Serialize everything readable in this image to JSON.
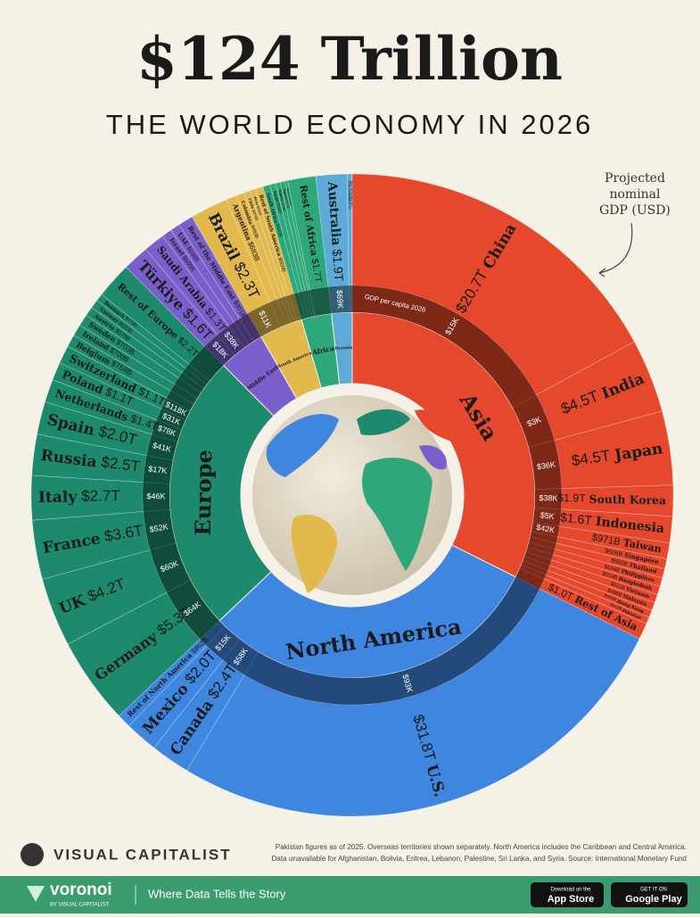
{
  "chart_data": {
    "type": "sunburst",
    "title": "$124 Trillion",
    "subtitle": "THE WORLD ECONOMY IN 2026",
    "annotation": [
      "Projected",
      "nominal",
      "GDP (USD)"
    ],
    "per_capita_title": "GDP per capita 2026",
    "regions": [
      {
        "name": "Asia",
        "color": "#e5482c",
        "countries": [
          {
            "name": "China",
            "value": 20.7,
            "value_label": "$20.7T",
            "per_capita": 15,
            "per_capita_label": "$15K"
          },
          {
            "name": "India",
            "value": 4.5,
            "value_label": "$4.5T",
            "per_capita": 3,
            "per_capita_label": "$3K"
          },
          {
            "name": "Japan",
            "value": 4.5,
            "value_label": "$4.5T",
            "per_capita": 36,
            "per_capita_label": "$36K"
          },
          {
            "name": "South Korea",
            "value": 1.9,
            "value_label": "$1.9T",
            "per_capita": 38,
            "per_capita_label": "$38K"
          },
          {
            "name": "Indonesia",
            "value": 1.6,
            "value_label": "$1.6T",
            "per_capita": 5,
            "per_capita_label": "$5K"
          },
          {
            "name": "Taiwan",
            "value": 0.971,
            "value_label": "$971B",
            "per_capita": 42,
            "per_capita_label": "$42K"
          },
          {
            "name": "Singapore",
            "value": 0.606,
            "value_label": "$606B",
            "per_capita": null,
            "per_capita_label": null
          },
          {
            "name": "Thailand",
            "value": 0.562,
            "value_label": "$562B",
            "per_capita": null,
            "per_capita_label": null
          },
          {
            "name": "Philippines",
            "value": 0.534,
            "value_label": "$534B",
            "per_capita": null,
            "per_capita_label": null
          },
          {
            "name": "Bangladesh",
            "value": 0.519,
            "value_label": "$519B",
            "per_capita": null,
            "per_capita_label": null
          },
          {
            "name": "Vietnam",
            "value": 0.511,
            "value_label": "$511B",
            "per_capita": null,
            "per_capita_label": null
          },
          {
            "name": "Malaysia",
            "value": 0.496,
            "value_label": "$496B",
            "per_capita": null,
            "per_capita_label": null
          },
          {
            "name": "Hong Kong",
            "value": 0.443,
            "value_label": "$443B",
            "per_capita": null,
            "per_capita_label": null
          },
          {
            "name": "Pakistan",
            "value": 0.41,
            "value_label": "$410B",
            "per_capita": null,
            "per_capita_label": null
          },
          {
            "name": "Rest of Asia",
            "value": 1.0,
            "value_label": "$1.0T",
            "per_capita": null,
            "per_capita_label": null
          }
        ]
      },
      {
        "name": "North America",
        "color": "#3f86e0",
        "countries": [
          {
            "name": "U.S.",
            "value": 31.8,
            "value_label": "$31.8T",
            "per_capita": 93,
            "per_capita_label": "$93K"
          },
          {
            "name": "Canada",
            "value": 2.4,
            "value_label": "$2.4T",
            "per_capita": 58,
            "per_capita_label": "$58K"
          },
          {
            "name": "Mexico",
            "value": 2.0,
            "value_label": "$2.0T",
            "per_capita": 15,
            "per_capita_label": "$15K"
          },
          {
            "name": "Rest of North America",
            "value": 0.862,
            "value_label": "$862B",
            "per_capita": null,
            "per_capita_label": null
          }
        ]
      },
      {
        "name": "Europe",
        "color": "#1d8a6e",
        "countries": [
          {
            "name": "Germany",
            "value": 5.3,
            "value_label": "$5.3T",
            "per_capita": 64,
            "per_capita_label": "$64K"
          },
          {
            "name": "UK",
            "value": 4.2,
            "value_label": "$4.2T",
            "per_capita": 60,
            "per_capita_label": "$60K"
          },
          {
            "name": "France",
            "value": 3.6,
            "value_label": "$3.6T",
            "per_capita": 52,
            "per_capita_label": "$52K"
          },
          {
            "name": "Italy",
            "value": 2.7,
            "value_label": "$2.7T",
            "per_capita": 46,
            "per_capita_label": "$46K"
          },
          {
            "name": "Russia",
            "value": 2.5,
            "value_label": "$2.5T",
            "per_capita": 17,
            "per_capita_label": "$17K"
          },
          {
            "name": "Spain",
            "value": 2.0,
            "value_label": "$2.0T",
            "per_capita": 41,
            "per_capita_label": "$41K"
          },
          {
            "name": "Netherlands",
            "value": 1.4,
            "value_label": "$1.4T",
            "per_capita": 78,
            "per_capita_label": "$78K"
          },
          {
            "name": "Poland",
            "value": 1.1,
            "value_label": "$1.1T",
            "per_capita": 31,
            "per_capita_label": "$31K"
          },
          {
            "name": "Switzerland",
            "value": 1.1,
            "value_label": "$1.1T",
            "per_capita": 118,
            "per_capita_label": "$118K"
          },
          {
            "name": "Belgium",
            "value": 0.768,
            "value_label": "$768B",
            "per_capita": null,
            "per_capita_label": null
          },
          {
            "name": "Ireland",
            "value": 0.708,
            "value_label": "$708B",
            "per_capita": null,
            "per_capita_label": null
          },
          {
            "name": "Sweden",
            "value": 0.703,
            "value_label": "$703B",
            "per_capita": null,
            "per_capita_label": null
          },
          {
            "name": "Austria",
            "value": 0.57,
            "value_label": "$570B",
            "per_capita": null,
            "per_capita_label": null
          },
          {
            "name": "Norway",
            "value": 0.52,
            "value_label": "$520B",
            "per_capita": null,
            "per_capita_label": null
          },
          {
            "name": "Denmark",
            "value": 0.47,
            "value_label": "$470B",
            "per_capita": null,
            "per_capita_label": null
          },
          {
            "name": "Rest of Europe",
            "value": 2.2,
            "value_label": "$2.2T",
            "per_capita": null,
            "per_capita_label": null
          }
        ]
      },
      {
        "name": "Middle East",
        "color": "#7a5fcb",
        "countries": [
          {
            "name": "Türkiye",
            "value": 1.6,
            "value_label": "$1.6T",
            "per_capita": 18,
            "per_capita_label": "$18K"
          },
          {
            "name": "Saudi Arabia",
            "value": 1.3,
            "value_label": "$1.3T",
            "per_capita": 38,
            "per_capita_label": "$38K"
          },
          {
            "name": "Israel",
            "value": 0.6,
            "value_label": "$600B",
            "per_capita": null,
            "per_capita_label": null
          },
          {
            "name": "UAE",
            "value": 0.596,
            "value_label": "$596B",
            "per_capita": null,
            "per_capita_label": null
          },
          {
            "name": "Rest of the Middle East",
            "value": 0.901,
            "value_label": "$901B",
            "per_capita": null,
            "per_capita_label": null
          }
        ]
      },
      {
        "name": "South America",
        "color": "#e2b94c",
        "countries": [
          {
            "name": "Brazil",
            "value": 2.3,
            "value_label": "$2.3T",
            "per_capita": 11,
            "per_capita_label": "$11K"
          },
          {
            "name": "Argentina",
            "value": 0.683,
            "value_label": "$683B",
            "per_capita": null,
            "per_capita_label": null
          },
          {
            "name": "Colombia",
            "value": 0.46,
            "value_label": "$460B",
            "per_capita": null,
            "per_capita_label": null
          },
          {
            "name": "Chile",
            "value": 0.37,
            "value_label": "$370B",
            "per_capita": null,
            "per_capita_label": null
          },
          {
            "name": "Peru",
            "value": 0.33,
            "value_label": "$330B",
            "per_capita": null,
            "per_capita_label": null
          },
          {
            "name": "Rest of South America",
            "value": 0.5,
            "value_label": "$500B",
            "per_capita": null,
            "per_capita_label": null
          }
        ]
      },
      {
        "name": "Africa",
        "color": "#2ea77b",
        "countries": [
          {
            "name": "South Africa",
            "value": 0.44,
            "value_label": "$440B",
            "per_capita": null,
            "per_capita_label": null
          },
          {
            "name": "Egypt",
            "value": 0.35,
            "value_label": "$350B",
            "per_capita": null,
            "per_capita_label": null
          },
          {
            "name": "Nigeria",
            "value": 0.29,
            "value_label": "$290B",
            "per_capita": null,
            "per_capita_label": null
          },
          {
            "name": "Algeria",
            "value": 0.27,
            "value_label": "$270B",
            "per_capita": null,
            "per_capita_label": null
          },
          {
            "name": "Morocco",
            "value": 0.18,
            "value_label": "$180B",
            "per_capita": null,
            "per_capita_label": null
          },
          {
            "name": "Rest of Africa",
            "value": 1.7,
            "value_label": "$1.7T",
            "per_capita": null,
            "per_capita_label": null
          }
        ]
      },
      {
        "name": "Oceania",
        "color": "#5daad8",
        "countries": [
          {
            "name": "Australia",
            "value": 1.9,
            "value_label": "$1.9T",
            "per_capita": 69,
            "per_capita_label": "$69K"
          },
          {
            "name": "New Zealand",
            "value": 0.27,
            "value_label": "$270B",
            "per_capita": null,
            "per_capita_label": null
          },
          {
            "name": "Rest of Oceania",
            "value": 0.04,
            "value_label": "$40B",
            "per_capita": null,
            "per_capita_label": null
          }
        ]
      }
    ]
  },
  "footer": {
    "brand": "VISUAL CAPITALIST",
    "notes": [
      "Pakistan figures as of 2025. Overseas territories shown separately. North America includes the Caribbean and Central America.",
      "Data unavailable for Afghanistan, Bolivia, Eritrea, Lebanon, Palestine, Sri Lanka, and Syria. Source: International Monetary Fund"
    ],
    "app": "voronoi",
    "app_by": "BY VISUAL CAPITALIST",
    "tagline": "Where Data Tells the Story",
    "app_store": [
      "Download on the",
      "App Store"
    ],
    "google_play": [
      "GET IT ON",
      "Google Play"
    ]
  }
}
